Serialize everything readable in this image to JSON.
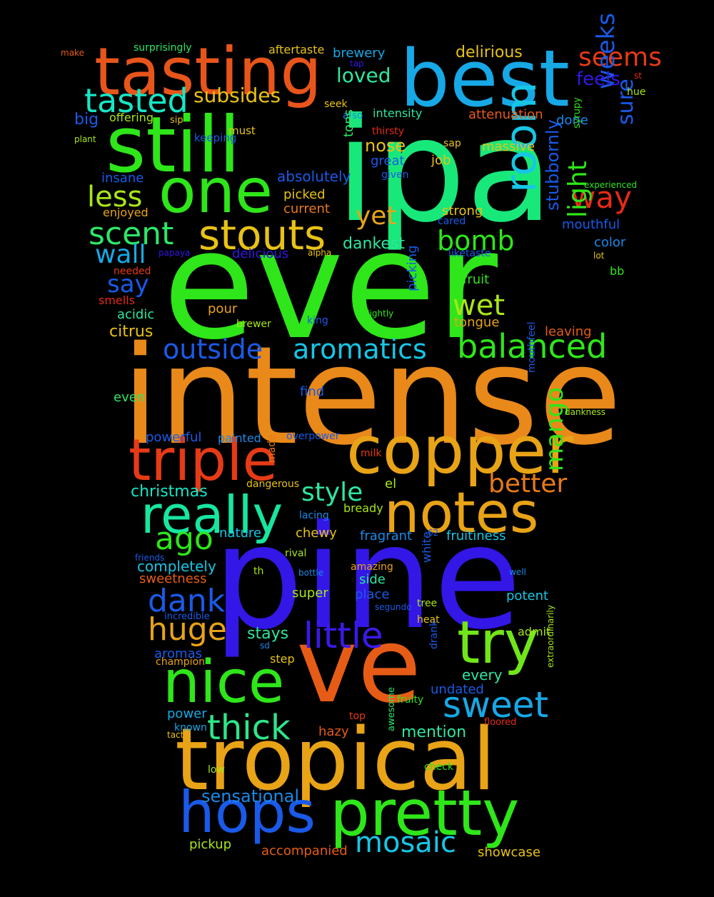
{
  "words": [
    {
      "text": "ever",
      "color": "#2ee619"
    },
    {
      "text": "ipa",
      "color": "#18e87a"
    },
    {
      "text": "intense",
      "color": "#e8891a"
    },
    {
      "text": "pine",
      "color": "#3317e6"
    },
    {
      "text": "ve",
      "color": "#e65c17"
    },
    {
      "text": "tropical",
      "color": "#e8a317"
    },
    {
      "text": "still",
      "color": "#2ee619"
    },
    {
      "text": "best",
      "color": "#17a8e6"
    },
    {
      "text": "tasting",
      "color": "#e8551a"
    },
    {
      "text": "one",
      "color": "#2ee619"
    },
    {
      "text": "copper",
      "color": "#e8a317"
    },
    {
      "text": "triple",
      "color": "#e63a17"
    },
    {
      "text": "notes",
      "color": "#e8a317"
    },
    {
      "text": "really",
      "color": "#17e6a0"
    },
    {
      "text": "pretty",
      "color": "#2ee619"
    },
    {
      "text": "hops",
      "color": "#1a5ae8"
    },
    {
      "text": "nice",
      "color": "#2ee619"
    },
    {
      "text": "try",
      "color": "#70e619"
    },
    {
      "text": "stouts",
      "color": "#e8c217"
    },
    {
      "text": "room",
      "color": "#17c6e6"
    },
    {
      "text": "little",
      "color": "#3a1ae8"
    },
    {
      "text": "sweet",
      "color": "#17a8e6"
    },
    {
      "text": "tasted",
      "color": "#17e6c6"
    },
    {
      "text": "balanced",
      "color": "#2ee619"
    },
    {
      "text": "aromatics",
      "color": "#17c6e6"
    },
    {
      "text": "outside",
      "color": "#1a5ae8"
    },
    {
      "text": "mosaic",
      "color": "#17c6e6"
    },
    {
      "text": "thick",
      "color": "#2ee68a"
    },
    {
      "text": "huge",
      "color": "#e8a317"
    },
    {
      "text": "dank",
      "color": "#1a5ae8"
    },
    {
      "text": "ago",
      "color": "#2ee619"
    },
    {
      "text": "scent",
      "color": "#2ee666"
    },
    {
      "text": "less",
      "color": "#a8e619"
    },
    {
      "text": "way",
      "color": "#e62a17"
    },
    {
      "text": "bomb",
      "color": "#2ee619"
    },
    {
      "text": "wet",
      "color": "#a8e619"
    },
    {
      "text": "yet",
      "color": "#e8a317"
    },
    {
      "text": "seems",
      "color": "#e63a17"
    },
    {
      "text": "weeks",
      "color": "#1a5ae8"
    },
    {
      "text": "light",
      "color": "#2ee619"
    },
    {
      "text": "mango",
      "color": "#2ee619"
    },
    {
      "text": "style",
      "color": "#2ee6a0"
    },
    {
      "text": "better",
      "color": "#e87a17"
    },
    {
      "text": "say",
      "color": "#1a5ae8"
    },
    {
      "text": "wall",
      "color": "#17a8e6"
    },
    {
      "text": "sure",
      "color": "#1a5ae8"
    },
    {
      "text": "feels",
      "color": "#3317e6"
    },
    {
      "text": "loved",
      "color": "#2ee6a0"
    },
    {
      "text": "subsides",
      "color": "#e8c217"
    },
    {
      "text": "stubbornly",
      "color": "#1a5ae8"
    },
    {
      "text": "sensational",
      "color": "#1a8ae8"
    },
    {
      "text": "christmas",
      "color": "#17e6c6"
    },
    {
      "text": "citrus",
      "color": "#e8c217"
    },
    {
      "text": "mention",
      "color": "#2ee6a0"
    },
    {
      "text": "dankest",
      "color": "#2ee6a0"
    },
    {
      "text": "nose",
      "color": "#e8c217"
    },
    {
      "text": "absolutely",
      "color": "#1a5ae8"
    },
    {
      "text": "delirious",
      "color": "#e8c217"
    },
    {
      "text": "brewery",
      "color": "#17a8e6"
    },
    {
      "text": "aftertaste",
      "color": "#e8c217"
    },
    {
      "text": "surprisingly",
      "color": "#2ee666"
    },
    {
      "text": "make",
      "color": "#e65c17"
    },
    {
      "text": "big",
      "color": "#1a5ae8"
    },
    {
      "text": "offering",
      "color": "#a8e619"
    },
    {
      "text": "plant",
      "color": "#a8e619"
    },
    {
      "text": "sip",
      "color": "#e8c217"
    },
    {
      "text": "keeping",
      "color": "#1a5ae8"
    },
    {
      "text": "must",
      "color": "#e8c217"
    },
    {
      "text": "seek",
      "color": "#e8c217"
    },
    {
      "text": "intensity",
      "color": "#2ee6a0"
    },
    {
      "text": "also",
      "color": "#1a8ae8"
    },
    {
      "text": "tap",
      "color": "#3317e6"
    },
    {
      "text": "thirsty",
      "color": "#e62a17"
    },
    {
      "text": "tons",
      "color": "#2ee666"
    },
    {
      "text": "great",
      "color": "#1a5ae8"
    },
    {
      "text": "given",
      "color": "#1a5ae8"
    },
    {
      "text": "job",
      "color": "#e8c217"
    },
    {
      "text": "sap",
      "color": "#e8c217"
    },
    {
      "text": "massive",
      "color": "#e8c217"
    },
    {
      "text": "attenuation",
      "color": "#e65c17"
    },
    {
      "text": "done",
      "color": "#1a8ae8"
    },
    {
      "text": "syrupy",
      "color": "#2ee619"
    },
    {
      "text": "hue",
      "color": "#a8e619"
    },
    {
      "text": "st",
      "color": "#e62a17"
    },
    {
      "text": "experienced",
      "color": "#2ee619"
    },
    {
      "text": "insane",
      "color": "#1a5ae8"
    },
    {
      "text": "enjoyed",
      "color": "#e8a317"
    },
    {
      "text": "picked",
      "color": "#e8c217"
    },
    {
      "text": "current",
      "color": "#e87a17"
    },
    {
      "text": "strong",
      "color": "#e8c217"
    },
    {
      "text": "cared",
      "color": "#1a5ae8"
    },
    {
      "text": "mouthful",
      "color": "#1a5ae8"
    },
    {
      "text": "color",
      "color": "#1a8ae8"
    },
    {
      "text": "lot",
      "color": "#e8c217"
    },
    {
      "text": "papaya",
      "color": "#3317e6"
    },
    {
      "text": "delicious",
      "color": "#3317e6"
    },
    {
      "text": "alpha",
      "color": "#e8c217"
    },
    {
      "text": "liketaste",
      "color": "#1a5ae8"
    },
    {
      "text": "needed",
      "color": "#e63a17"
    },
    {
      "text": "smells",
      "color": "#e62a17"
    },
    {
      "text": "fruit",
      "color": "#2ee619"
    },
    {
      "text": "bb",
      "color": "#2ee619"
    },
    {
      "text": "acidic",
      "color": "#2ee6a0"
    },
    {
      "text": "pour",
      "color": "#e8a317"
    },
    {
      "text": "brewer",
      "color": "#a8e619"
    },
    {
      "text": "king",
      "color": "#1a5ae8"
    },
    {
      "text": "slightly",
      "color": "#2ee619"
    },
    {
      "text": "picking",
      "color": "#1a5ae8"
    },
    {
      "text": "tongue",
      "color": "#e8a317"
    },
    {
      "text": "leaving",
      "color": "#e65c17"
    },
    {
      "text": "even",
      "color": "#2ee666"
    },
    {
      "text": "find",
      "color": "#1a5ae8"
    },
    {
      "text": "mouthfeel",
      "color": "#1a5ae8"
    },
    {
      "text": "dankness",
      "color": "#a8e619"
    },
    {
      "text": "powerful",
      "color": "#1a5ae8"
    },
    {
      "text": "painted",
      "color": "#1a8ae8"
    },
    {
      "text": "overpower",
      "color": "#1a5ae8"
    },
    {
      "text": "made",
      "color": "#e87a17"
    },
    {
      "text": "milk",
      "color": "#e63a17"
    },
    {
      "text": "dangerous",
      "color": "#e8c217"
    },
    {
      "text": "el",
      "color": "#a8e619"
    },
    {
      "text": "lacing",
      "color": "#1a8ae8"
    },
    {
      "text": "bready",
      "color": "#a8e619"
    },
    {
      "text": "chewy",
      "color": "#e8c217"
    },
    {
      "text": "nature",
      "color": "#17c6e6"
    },
    {
      "text": "fragrant",
      "color": "#1a8ae8"
    },
    {
      "text": "62",
      "color": "#1a5ae8"
    },
    {
      "text": "fruitiness",
      "color": "#17c6e6"
    },
    {
      "text": "friends",
      "color": "#1a5ae8"
    },
    {
      "text": "rival",
      "color": "#a8e619"
    },
    {
      "text": "completely",
      "color": "#17c6e6"
    },
    {
      "text": "amazing",
      "color": "#e8a317"
    },
    {
      "text": "sweetness",
      "color": "#e65c17"
    },
    {
      "text": "th",
      "color": "#a8e619"
    },
    {
      "text": "bottle",
      "color": "#1a8ae8"
    },
    {
      "text": "side",
      "color": "#2ee6a0"
    },
    {
      "text": "white",
      "color": "#1a5ae8"
    },
    {
      "text": "well",
      "color": "#1a8ae8"
    },
    {
      "text": "place",
      "color": "#1a5ae8"
    },
    {
      "text": "super",
      "color": "#a8e619"
    },
    {
      "text": "potent",
      "color": "#17c6e6"
    },
    {
      "text": "tree",
      "color": "#a8e619"
    },
    {
      "text": "segundo",
      "color": "#1a5ae8"
    },
    {
      "text": "incredible",
      "color": "#1a5ae8"
    },
    {
      "text": "heat",
      "color": "#e8c217"
    },
    {
      "text": "admit",
      "color": "#a8e619"
    },
    {
      "text": "stays",
      "color": "#2ee6a0"
    },
    {
      "text": "sd",
      "color": "#1a8ae8"
    },
    {
      "text": "aromas",
      "color": "#1a5ae8"
    },
    {
      "text": "champion",
      "color": "#e8a317"
    },
    {
      "text": "step",
      "color": "#e8c217"
    },
    {
      "text": "drank",
      "color": "#1a5ae8"
    },
    {
      "text": "every",
      "color": "#2ee6a0"
    },
    {
      "text": "undated",
      "color": "#1a5ae8"
    },
    {
      "text": "extraordinarily",
      "color": "#a8e619"
    },
    {
      "text": "fruity",
      "color": "#2ee619"
    },
    {
      "text": "power",
      "color": "#17a8e6"
    },
    {
      "text": "top",
      "color": "#e63a17"
    },
    {
      "text": "floored",
      "color": "#e62a17"
    },
    {
      "text": "known",
      "color": "#17a8e6"
    },
    {
      "text": "tact",
      "color": "#e8c217"
    },
    {
      "text": "hazy",
      "color": "#e65c17"
    },
    {
      "text": "awesome",
      "color": "#2ee666"
    },
    {
      "text": "low",
      "color": "#a8e619"
    },
    {
      "text": "check",
      "color": "#2ee619"
    },
    {
      "text": "pickup",
      "color": "#a8e619"
    },
    {
      "text": "accompanied",
      "color": "#e65c17"
    },
    {
      "text": "showcase",
      "color": "#e8c217"
    }
  ]
}
